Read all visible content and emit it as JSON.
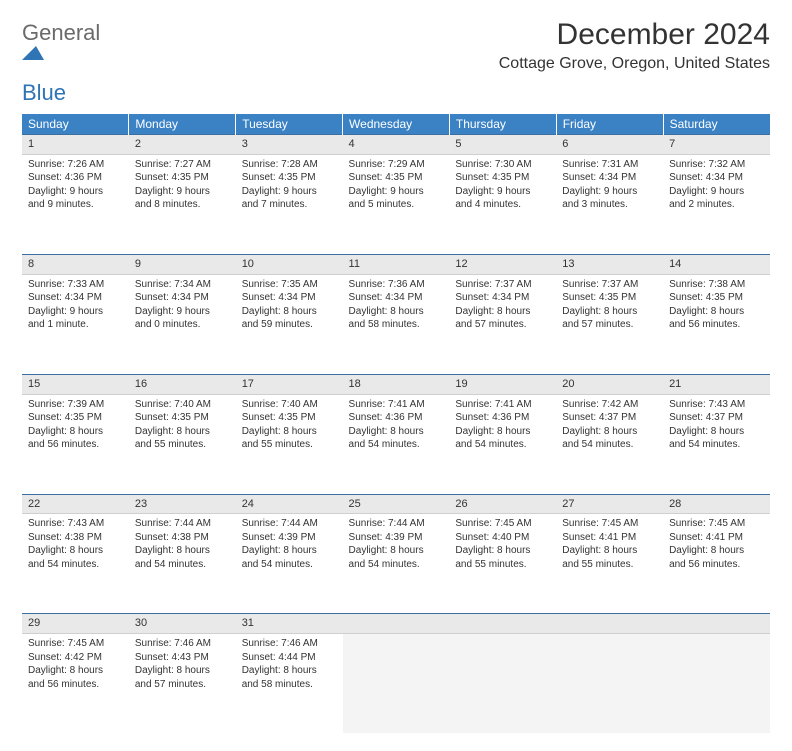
{
  "logo": {
    "general": "General",
    "blue": "Blue"
  },
  "header": {
    "month_title": "December 2024",
    "location": "Cottage Grove, Oregon, United States"
  },
  "colors": {
    "header_bg": "#3b82c4",
    "header_text": "#ffffff",
    "daynum_bg": "#e9e9e9",
    "daynum_border_top": "#3b6fa0",
    "logo_blue": "#2f74b5",
    "logo_gray": "#6a6a6a"
  },
  "weekdays": [
    "Sunday",
    "Monday",
    "Tuesday",
    "Wednesday",
    "Thursday",
    "Friday",
    "Saturday"
  ],
  "weeks": [
    [
      {
        "n": "1",
        "l1": "Sunrise: 7:26 AM",
        "l2": "Sunset: 4:36 PM",
        "l3": "Daylight: 9 hours",
        "l4": "and 9 minutes."
      },
      {
        "n": "2",
        "l1": "Sunrise: 7:27 AM",
        "l2": "Sunset: 4:35 PM",
        "l3": "Daylight: 9 hours",
        "l4": "and 8 minutes."
      },
      {
        "n": "3",
        "l1": "Sunrise: 7:28 AM",
        "l2": "Sunset: 4:35 PM",
        "l3": "Daylight: 9 hours",
        "l4": "and 7 minutes."
      },
      {
        "n": "4",
        "l1": "Sunrise: 7:29 AM",
        "l2": "Sunset: 4:35 PM",
        "l3": "Daylight: 9 hours",
        "l4": "and 5 minutes."
      },
      {
        "n": "5",
        "l1": "Sunrise: 7:30 AM",
        "l2": "Sunset: 4:35 PM",
        "l3": "Daylight: 9 hours",
        "l4": "and 4 minutes."
      },
      {
        "n": "6",
        "l1": "Sunrise: 7:31 AM",
        "l2": "Sunset: 4:34 PM",
        "l3": "Daylight: 9 hours",
        "l4": "and 3 minutes."
      },
      {
        "n": "7",
        "l1": "Sunrise: 7:32 AM",
        "l2": "Sunset: 4:34 PM",
        "l3": "Daylight: 9 hours",
        "l4": "and 2 minutes."
      }
    ],
    [
      {
        "n": "8",
        "l1": "Sunrise: 7:33 AM",
        "l2": "Sunset: 4:34 PM",
        "l3": "Daylight: 9 hours",
        "l4": "and 1 minute."
      },
      {
        "n": "9",
        "l1": "Sunrise: 7:34 AM",
        "l2": "Sunset: 4:34 PM",
        "l3": "Daylight: 9 hours",
        "l4": "and 0 minutes."
      },
      {
        "n": "10",
        "l1": "Sunrise: 7:35 AM",
        "l2": "Sunset: 4:34 PM",
        "l3": "Daylight: 8 hours",
        "l4": "and 59 minutes."
      },
      {
        "n": "11",
        "l1": "Sunrise: 7:36 AM",
        "l2": "Sunset: 4:34 PM",
        "l3": "Daylight: 8 hours",
        "l4": "and 58 minutes."
      },
      {
        "n": "12",
        "l1": "Sunrise: 7:37 AM",
        "l2": "Sunset: 4:34 PM",
        "l3": "Daylight: 8 hours",
        "l4": "and 57 minutes."
      },
      {
        "n": "13",
        "l1": "Sunrise: 7:37 AM",
        "l2": "Sunset: 4:35 PM",
        "l3": "Daylight: 8 hours",
        "l4": "and 57 minutes."
      },
      {
        "n": "14",
        "l1": "Sunrise: 7:38 AM",
        "l2": "Sunset: 4:35 PM",
        "l3": "Daylight: 8 hours",
        "l4": "and 56 minutes."
      }
    ],
    [
      {
        "n": "15",
        "l1": "Sunrise: 7:39 AM",
        "l2": "Sunset: 4:35 PM",
        "l3": "Daylight: 8 hours",
        "l4": "and 56 minutes."
      },
      {
        "n": "16",
        "l1": "Sunrise: 7:40 AM",
        "l2": "Sunset: 4:35 PM",
        "l3": "Daylight: 8 hours",
        "l4": "and 55 minutes."
      },
      {
        "n": "17",
        "l1": "Sunrise: 7:40 AM",
        "l2": "Sunset: 4:35 PM",
        "l3": "Daylight: 8 hours",
        "l4": "and 55 minutes."
      },
      {
        "n": "18",
        "l1": "Sunrise: 7:41 AM",
        "l2": "Sunset: 4:36 PM",
        "l3": "Daylight: 8 hours",
        "l4": "and 54 minutes."
      },
      {
        "n": "19",
        "l1": "Sunrise: 7:41 AM",
        "l2": "Sunset: 4:36 PM",
        "l3": "Daylight: 8 hours",
        "l4": "and 54 minutes."
      },
      {
        "n": "20",
        "l1": "Sunrise: 7:42 AM",
        "l2": "Sunset: 4:37 PM",
        "l3": "Daylight: 8 hours",
        "l4": "and 54 minutes."
      },
      {
        "n": "21",
        "l1": "Sunrise: 7:43 AM",
        "l2": "Sunset: 4:37 PM",
        "l3": "Daylight: 8 hours",
        "l4": "and 54 minutes."
      }
    ],
    [
      {
        "n": "22",
        "l1": "Sunrise: 7:43 AM",
        "l2": "Sunset: 4:38 PM",
        "l3": "Daylight: 8 hours",
        "l4": "and 54 minutes."
      },
      {
        "n": "23",
        "l1": "Sunrise: 7:44 AM",
        "l2": "Sunset: 4:38 PM",
        "l3": "Daylight: 8 hours",
        "l4": "and 54 minutes."
      },
      {
        "n": "24",
        "l1": "Sunrise: 7:44 AM",
        "l2": "Sunset: 4:39 PM",
        "l3": "Daylight: 8 hours",
        "l4": "and 54 minutes."
      },
      {
        "n": "25",
        "l1": "Sunrise: 7:44 AM",
        "l2": "Sunset: 4:39 PM",
        "l3": "Daylight: 8 hours",
        "l4": "and 54 minutes."
      },
      {
        "n": "26",
        "l1": "Sunrise: 7:45 AM",
        "l2": "Sunset: 4:40 PM",
        "l3": "Daylight: 8 hours",
        "l4": "and 55 minutes."
      },
      {
        "n": "27",
        "l1": "Sunrise: 7:45 AM",
        "l2": "Sunset: 4:41 PM",
        "l3": "Daylight: 8 hours",
        "l4": "and 55 minutes."
      },
      {
        "n": "28",
        "l1": "Sunrise: 7:45 AM",
        "l2": "Sunset: 4:41 PM",
        "l3": "Daylight: 8 hours",
        "l4": "and 56 minutes."
      }
    ],
    [
      {
        "n": "29",
        "l1": "Sunrise: 7:45 AM",
        "l2": "Sunset: 4:42 PM",
        "l3": "Daylight: 8 hours",
        "l4": "and 56 minutes."
      },
      {
        "n": "30",
        "l1": "Sunrise: 7:46 AM",
        "l2": "Sunset: 4:43 PM",
        "l3": "Daylight: 8 hours",
        "l4": "and 57 minutes."
      },
      {
        "n": "31",
        "l1": "Sunrise: 7:46 AM",
        "l2": "Sunset: 4:44 PM",
        "l3": "Daylight: 8 hours",
        "l4": "and 58 minutes."
      },
      {
        "empty": true
      },
      {
        "empty": true
      },
      {
        "empty": true
      },
      {
        "empty": true
      }
    ]
  ]
}
